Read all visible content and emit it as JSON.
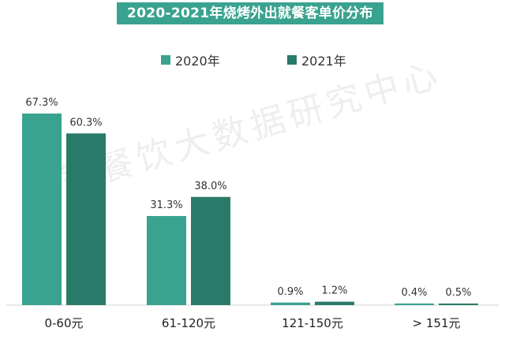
{
  "chart_data": {
    "type": "bar",
    "title": "2020-2021年烧烤外出就餐客单价分布",
    "categories": [
      "0-60元",
      "61-120元",
      "121-150元",
      "> 151元"
    ],
    "series": [
      {
        "name": "2020年",
        "values": [
          67.3,
          31.3,
          0.9,
          0.4
        ],
        "labels": [
          "67.3%",
          "31.3%",
          "0.9%",
          "0.4%"
        ],
        "color": "#3aa38f"
      },
      {
        "name": "2021年",
        "values": [
          60.3,
          38.0,
          1.2,
          0.5
        ],
        "labels": [
          "60.3%",
          "38.0%",
          "1.2%",
          "0.5%"
        ],
        "color": "#2a7a6a"
      }
    ],
    "ylim": [
      0,
      75
    ],
    "grid": false,
    "legend": "top-center"
  },
  "watermark": "辰智餐饮大数据研究中心"
}
